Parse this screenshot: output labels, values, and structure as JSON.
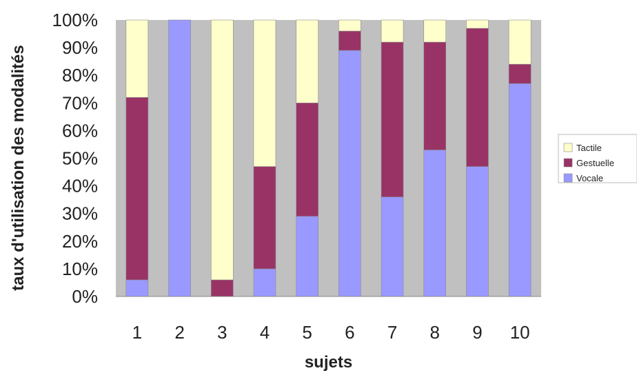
{
  "chart_data": {
    "type": "bar",
    "stacked": true,
    "percent": true,
    "categories": [
      "1",
      "2",
      "3",
      "4",
      "5",
      "6",
      "7",
      "8",
      "9",
      "10"
    ],
    "series": [
      {
        "name": "Vocale",
        "color": "#9999ff",
        "values": [
          6,
          100,
          0,
          10,
          29,
          89,
          36,
          53,
          47,
          77
        ]
      },
      {
        "name": "Gestuelle",
        "color": "#993366",
        "values": [
          66,
          0,
          6,
          37,
          41,
          7,
          56,
          39,
          50,
          7
        ]
      },
      {
        "name": "Tactile",
        "color": "#ffffcc",
        "values": [
          28,
          0,
          94,
          53,
          30,
          4,
          8,
          8,
          3,
          16
        ]
      }
    ],
    "legend_order": [
      "Tactile",
      "Gestuelle",
      "Vocale"
    ],
    "xlabel": "sujets",
    "ylabel": "taux d'utilisation des modalités",
    "ylim": [
      0,
      100
    ],
    "yticks": [
      "0%",
      "10%",
      "20%",
      "30%",
      "40%",
      "50%",
      "60%",
      "70%",
      "80%",
      "90%",
      "100%"
    ],
    "legend_position": "right",
    "plot_background": "#c0c0c0",
    "grid": false
  }
}
